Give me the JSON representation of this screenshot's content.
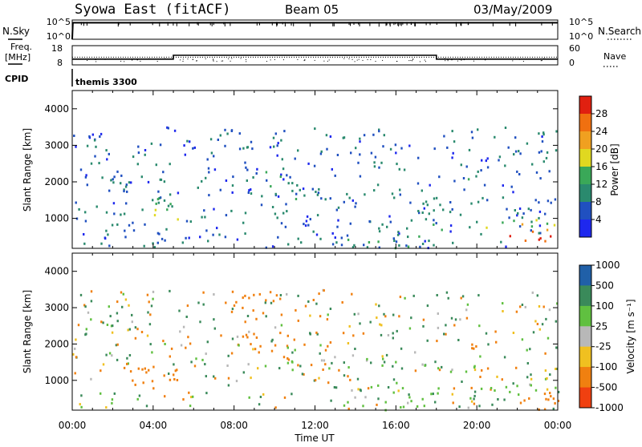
{
  "header": {
    "station": "Syowa East (fitACF)",
    "beam": "Beam 05",
    "date": "03/May/2009"
  },
  "strip_labels": {
    "nsky": "N.Sky",
    "nsearch": "N.Search",
    "freq_line1": "Freq.",
    "freq_line2": "[MHz]",
    "nave": "Nave",
    "cpid": "CPID",
    "cpid_value": "themis 3300",
    "noise_ticks": [
      "10^5",
      "10^0"
    ],
    "freq_ticks": [
      "18",
      "8"
    ],
    "nave_ticks": [
      "60",
      "0"
    ]
  },
  "chart_data": [
    {
      "type": "line",
      "id": "noise",
      "yscale": "log",
      "ylim": [
        1,
        100000
      ],
      "x": [
        "00:00",
        "00:02",
        "24:00"
      ],
      "series": [
        {
          "name": "N.Sky",
          "values": [
            1,
            20000,
            20000
          ]
        },
        {
          "name": "N.Search",
          "values": [
            1,
            20000,
            20000
          ]
        }
      ]
    },
    {
      "type": "line",
      "id": "frequency-nave",
      "ylim": [
        8,
        18
      ],
      "x": [
        "00:00",
        "05:00",
        "05:00",
        "18:00",
        "18:00",
        "24:00"
      ],
      "series": [
        {
          "name": "Freq.",
          "values": [
            11,
            11,
            13,
            13,
            11,
            11
          ]
        },
        {
          "name": "Nave",
          "values": [
            12,
            12,
            12,
            12,
            12,
            12
          ]
        }
      ]
    },
    {
      "type": "heatmap",
      "id": "power",
      "xlabel": "",
      "ylabel": "Slant Range [km]",
      "xlim": [
        0,
        24
      ],
      "ylim": [
        180,
        4500
      ],
      "yticks": [
        1000,
        2000,
        3000,
        4000
      ],
      "colorbar": {
        "label": "Power [dB]",
        "ticks": [
          4,
          8,
          12,
          16,
          20,
          24,
          28
        ],
        "colors": [
          "#1e28ee",
          "#2050c0",
          "#2a8a6e",
          "#3aa858",
          "#e0d820",
          "#f0a020",
          "#f07010",
          "#e02010"
        ],
        "range": [
          0,
          32
        ]
      },
      "patches": [
        {
          "x": [
            0.2,
            3.0
          ],
          "y": [
            200,
            400
          ],
          "v": 6,
          "d": 0.12
        },
        {
          "x": [
            0.2,
            2.5
          ],
          "y": [
            600,
            1300
          ],
          "v": 6,
          "d": 0.05
        },
        {
          "x": [
            2.5,
            4.0
          ],
          "y": [
            700,
            1200
          ],
          "v": 8,
          "d": 0.2
        },
        {
          "x": [
            3.7,
            5.2
          ],
          "y": [
            1000,
            1700
          ],
          "v": 14,
          "d": 0.35
        },
        {
          "x": [
            5.0,
            6.5
          ],
          "y": [
            200,
            500
          ],
          "v": 6,
          "d": 0.08
        },
        {
          "x": [
            6.5,
            7.8
          ],
          "y": [
            1500,
            2800
          ],
          "v": 6,
          "d": 0.1
        },
        {
          "x": [
            7.5,
            10.5
          ],
          "y": [
            2900,
            3500
          ],
          "v": 7,
          "d": 0.35
        },
        {
          "x": [
            8.5,
            10.8
          ],
          "y": [
            1600,
            2400
          ],
          "v": 10,
          "d": 0.3
        },
        {
          "x": [
            10.5,
            12.5
          ],
          "y": [
            1500,
            2000
          ],
          "v": 10,
          "d": 0.25
        },
        {
          "x": [
            12.0,
            16.0
          ],
          "y": [
            1300,
            1700
          ],
          "v": 8,
          "d": 0.2
        },
        {
          "x": [
            13.0,
            17.5
          ],
          "y": [
            200,
            600
          ],
          "v": 12,
          "d": 0.3
        },
        {
          "x": [
            14.5,
            18.5
          ],
          "y": [
            600,
            1000
          ],
          "v": 10,
          "d": 0.25
        },
        {
          "x": [
            17.0,
            20.0
          ],
          "y": [
            1200,
            1600
          ],
          "v": 8,
          "d": 0.2
        },
        {
          "x": [
            19.5,
            21.0
          ],
          "y": [
            1900,
            2200
          ],
          "v": 10,
          "d": 0.3
        },
        {
          "x": [
            20.0,
            24.0
          ],
          "y": [
            700,
            1000
          ],
          "v": 18,
          "d": 0.35
        },
        {
          "x": [
            21.5,
            24.0
          ],
          "y": [
            400,
            700
          ],
          "v": 28,
          "d": 0.45
        },
        {
          "x": [
            22.5,
            24.0
          ],
          "y": [
            1000,
            1500
          ],
          "v": 10,
          "d": 0.25
        }
      ]
    },
    {
      "type": "heatmap",
      "id": "velocity",
      "xlabel": "Time UT",
      "ylabel": "Slant Range [km]",
      "xlim": [
        0,
        24
      ],
      "ylim": [
        180,
        4500
      ],
      "xticks": [
        "00:00",
        "04:00",
        "08:00",
        "12:00",
        "16:00",
        "20:00",
        "00:00"
      ],
      "yticks": [
        1000,
        2000,
        3000,
        4000
      ],
      "colorbar": {
        "label": "Velocity [m s⁻¹]",
        "ticks": [
          "1000",
          "500",
          "100",
          "25",
          "-25",
          "-100",
          "-500",
          "-1000"
        ],
        "colors": [
          "#2028d8",
          "#2060a8",
          "#3a8a5a",
          "#60c040",
          "#b8b8b8",
          "#f0c020",
          "#f08010",
          "#f04010",
          "#e00000"
        ]
      },
      "patches": [
        {
          "x": [
            0.2,
            3.0
          ],
          "y": [
            200,
            800
          ],
          "v": 50,
          "d": 0.08
        },
        {
          "x": [
            2.5,
            5.2
          ],
          "y": [
            800,
            1500
          ],
          "v": -300,
          "d": 0.4
        },
        {
          "x": [
            5.0,
            6.5
          ],
          "y": [
            200,
            500
          ],
          "v": 50,
          "d": 0.08
        },
        {
          "x": [
            7.5,
            10.5
          ],
          "y": [
            2900,
            3500
          ],
          "v": -250,
          "d": 0.35
        },
        {
          "x": [
            8.5,
            10.8
          ],
          "y": [
            1600,
            2400
          ],
          "v": -200,
          "d": 0.3
        },
        {
          "x": [
            10.5,
            12.5
          ],
          "y": [
            1500,
            2000
          ],
          "v": 60,
          "d": 0.25
        },
        {
          "x": [
            12.0,
            16.0
          ],
          "y": [
            1300,
            1700
          ],
          "v": 80,
          "d": 0.2
        },
        {
          "x": [
            13.0,
            17.5
          ],
          "y": [
            200,
            600
          ],
          "v": 60,
          "d": 0.3
        },
        {
          "x": [
            14.5,
            18.5
          ],
          "y": [
            600,
            1000
          ],
          "v": 80,
          "d": 0.25
        },
        {
          "x": [
            17.0,
            20.0
          ],
          "y": [
            1200,
            1600
          ],
          "v": 60,
          "d": 0.2
        },
        {
          "x": [
            19.5,
            21.0
          ],
          "y": [
            1900,
            2200
          ],
          "v": -150,
          "d": 0.3
        },
        {
          "x": [
            20.0,
            24.0
          ],
          "y": [
            700,
            1000
          ],
          "v": 60,
          "d": 0.35
        },
        {
          "x": [
            21.5,
            24.0
          ],
          "y": [
            400,
            700
          ],
          "v": -150,
          "d": 0.45
        },
        {
          "x": [
            22.5,
            24.0
          ],
          "y": [
            1000,
            1500
          ],
          "v": -80,
          "d": 0.25
        }
      ]
    }
  ]
}
